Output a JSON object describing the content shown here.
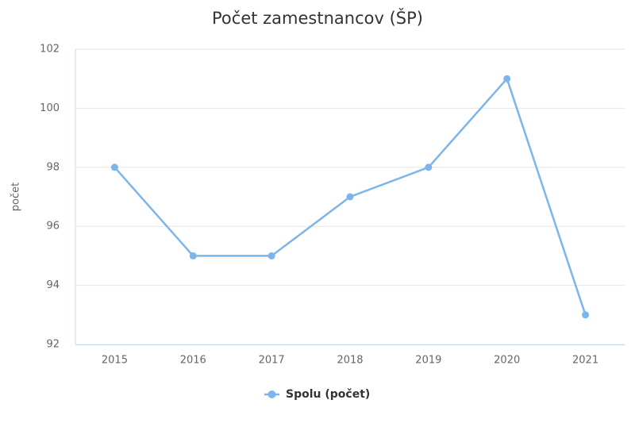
{
  "chart_data": {
    "type": "line",
    "title": "Počet zamestnancov (ŠP)",
    "y_label": "počet",
    "categories": [
      "2015",
      "2016",
      "2017",
      "2018",
      "2019",
      "2020",
      "2021"
    ],
    "series": [
      {
        "name": "Spolu (počet)",
        "color": "#7cb5ec",
        "values": [
          98,
          95,
          95,
          97,
          98,
          101,
          93
        ]
      }
    ],
    "ylim": [
      92,
      102
    ],
    "yticks": [
      92,
      94,
      96,
      98,
      100,
      102
    ],
    "grid": true
  }
}
